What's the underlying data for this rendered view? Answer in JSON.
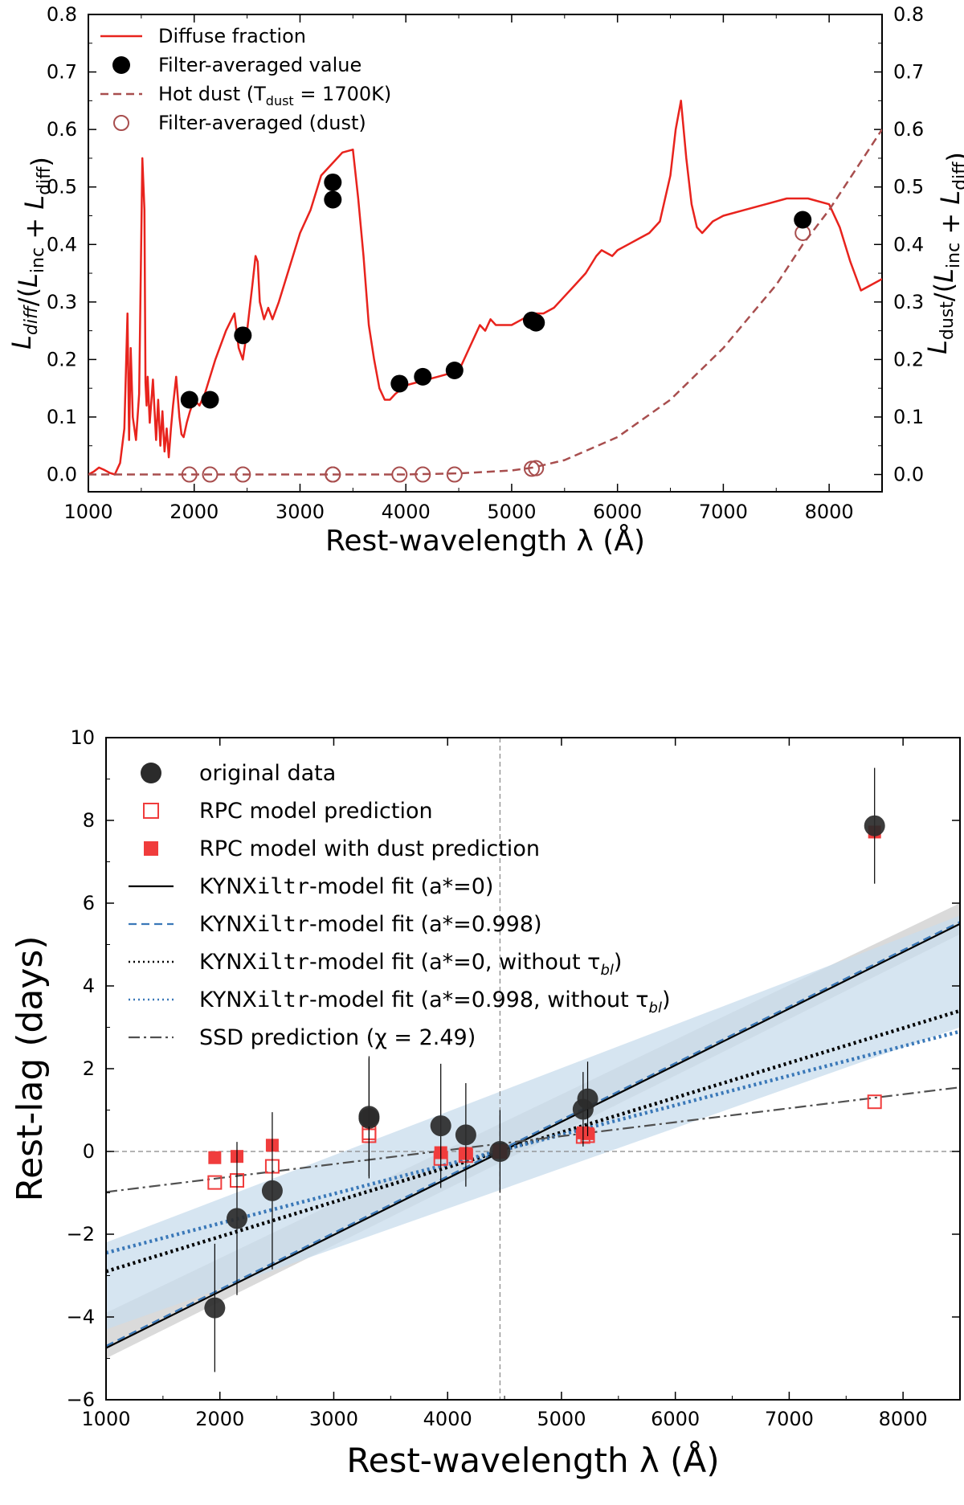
{
  "chart_data": [
    {
      "type": "line",
      "id": "top",
      "xlabel": "Rest-wavelength λ (Å)",
      "ylabel_left": "L_diff/(L_inc + L_diff)",
      "ylabel_right": "L_dust/(L_inc + L_diff)",
      "xlim": [
        1000,
        8500
      ],
      "ylim": [
        0,
        0.8
      ],
      "ylim_axis": [
        -0.03,
        0.8
      ],
      "x_ticks": [
        "1000",
        "2000",
        "3000",
        "4000",
        "5000",
        "6000",
        "7000",
        "8000"
      ],
      "y_ticks": [
        "0.0",
        "0.1",
        "0.2",
        "0.3",
        "0.4",
        "0.5",
        "0.6",
        "0.7",
        "0.8"
      ],
      "legend": [
        {
          "label": "Diffuse fraction",
          "style": "line-red"
        },
        {
          "label": "Filter-averaged value",
          "style": "dot-black"
        },
        {
          "label": "Hot dust (T",
          "sub": "dust",
          "tail": " = 1700K)",
          "style": "dashed-brown"
        },
        {
          "label": "Filter-averaged (dust)",
          "style": "open-circle-brown"
        }
      ],
      "series": [
        {
          "name": "Diffuse fraction",
          "color": "#e8231d",
          "x": [
            1000,
            1050,
            1100,
            1150,
            1200,
            1250,
            1300,
            1340,
            1370,
            1385,
            1400,
            1420,
            1450,
            1480,
            1510,
            1530,
            1540,
            1550,
            1560,
            1580,
            1610,
            1640,
            1660,
            1680,
            1700,
            1720,
            1740,
            1760,
            1780,
            1800,
            1830,
            1860,
            1880,
            1900,
            1930,
            1960,
            2000,
            2050,
            2100,
            2200,
            2300,
            2380,
            2420,
            2460,
            2500,
            2550,
            2580,
            2600,
            2620,
            2660,
            2700,
            2740,
            2800,
            2900,
            3000,
            3100,
            3200,
            3300,
            3400,
            3500,
            3550,
            3600,
            3650,
            3700,
            3750,
            3800,
            3850,
            3900,
            4000,
            4100,
            4200,
            4300,
            4400,
            4500,
            4600,
            4650,
            4700,
            4750,
            4800,
            4850,
            4900,
            5000,
            5100,
            5200,
            5300,
            5400,
            5500,
            5600,
            5700,
            5800,
            5850,
            5900,
            5950,
            6000,
            6100,
            6200,
            6300,
            6400,
            6500,
            6550,
            6600,
            6650,
            6700,
            6750,
            6800,
            6900,
            7000,
            7200,
            7400,
            7600,
            7800,
            8000,
            8100,
            8200,
            8300,
            8400,
            8500
          ],
          "y": [
            0.0,
            0.005,
            0.012,
            0.008,
            0.003,
            0.0,
            0.02,
            0.08,
            0.28,
            0.06,
            0.22,
            0.1,
            0.06,
            0.14,
            0.55,
            0.46,
            0.16,
            0.12,
            0.17,
            0.09,
            0.165,
            0.06,
            0.13,
            0.05,
            0.11,
            0.04,
            0.08,
            0.03,
            0.08,
            0.12,
            0.17,
            0.1,
            0.07,
            0.065,
            0.09,
            0.11,
            0.13,
            0.12,
            0.14,
            0.2,
            0.25,
            0.28,
            0.22,
            0.2,
            0.25,
            0.33,
            0.38,
            0.37,
            0.3,
            0.27,
            0.29,
            0.27,
            0.3,
            0.36,
            0.42,
            0.46,
            0.52,
            0.54,
            0.56,
            0.565,
            0.48,
            0.38,
            0.26,
            0.2,
            0.15,
            0.13,
            0.13,
            0.14,
            0.155,
            0.16,
            0.165,
            0.17,
            0.175,
            0.18,
            0.22,
            0.24,
            0.26,
            0.25,
            0.27,
            0.26,
            0.26,
            0.26,
            0.27,
            0.28,
            0.28,
            0.29,
            0.31,
            0.33,
            0.35,
            0.38,
            0.39,
            0.385,
            0.38,
            0.39,
            0.4,
            0.41,
            0.42,
            0.44,
            0.52,
            0.6,
            0.65,
            0.55,
            0.47,
            0.43,
            0.42,
            0.44,
            0.45,
            0.46,
            0.47,
            0.48,
            0.48,
            0.47,
            0.43,
            0.37,
            0.32,
            0.33,
            0.34
          ]
        },
        {
          "name": "Hot dust (T_dust = 1700K)",
          "color": "#a84e4e",
          "x": [
            1000,
            2000,
            3000,
            4000,
            4500,
            5000,
            5200,
            5500,
            6000,
            6500,
            7000,
            7500,
            7750,
            8000,
            8250,
            8500
          ],
          "y": [
            0.0,
            0.0,
            0.0,
            0.0,
            0.002,
            0.007,
            0.012,
            0.025,
            0.065,
            0.13,
            0.22,
            0.33,
            0.4,
            0.46,
            0.53,
            0.6
          ]
        }
      ],
      "points_filled": {
        "name": "Filter-averaged value",
        "x": [
          1955,
          2150,
          2460,
          3310,
          3310,
          3940,
          4160,
          4460,
          5190,
          5230,
          7750
        ],
        "y": [
          0.13,
          0.13,
          0.242,
          0.508,
          0.478,
          0.158,
          0.17,
          0.181,
          0.268,
          0.264,
          0.443
        ]
      },
      "points_open": {
        "name": "Filter-averaged (dust)",
        "x": [
          1955,
          2150,
          2460,
          3310,
          3310,
          3940,
          4160,
          4460,
          5190,
          5230,
          7750
        ],
        "y": [
          0.0,
          0.0,
          0.0,
          0.0,
          0.0,
          0.0,
          0.0,
          0.0,
          0.01,
          0.011,
          0.42
        ]
      }
    },
    {
      "type": "scatter",
      "id": "bottom",
      "xlabel": "Rest-wavelength λ (Å)",
      "ylabel": "Rest-lag (days)",
      "xlim": [
        1000,
        8500
      ],
      "ylim": [
        -6,
        10
      ],
      "x_ticks": [
        "1000",
        "2000",
        "3000",
        "4000",
        "5000",
        "6000",
        "7000",
        "8000"
      ],
      "y_ticks": [
        "−6",
        "−4",
        "−2",
        "0",
        "2",
        "4",
        "6",
        "8",
        "10"
      ],
      "reference_lines": {
        "x": 4460,
        "y": 0
      },
      "legend": [
        {
          "label": "original data",
          "style": "dot-dark"
        },
        {
          "label": "RPC model prediction",
          "style": "open-square-red"
        },
        {
          "label": "RPC model with dust prediction",
          "style": "filled-square-red"
        },
        {
          "label": "KYNXiltr-model fit (a*=0)",
          "mono": "KYNXiltr",
          "style": "solid-black"
        },
        {
          "label": "KYNXiltr-model fit (a*=0.998)",
          "mono": "KYNXiltr",
          "style": "dashed-blue"
        },
        {
          "label": "KYNXiltr-model fit (a*=0, without τ",
          "mono": "KYNXiltr",
          "sub": "bl",
          "tail": ")",
          "style": "dotted-black"
        },
        {
          "label": "KYNXiltr-model fit (a*=0.998, without τ",
          "mono": "KYNXiltr",
          "sub": "bl",
          "tail": ")",
          "style": "dotted-blue"
        },
        {
          "label": "SSD prediction (χ = 2.49)",
          "style": "dashdot-gray"
        }
      ],
      "original_data": {
        "x": [
          1955,
          2150,
          2460,
          3310,
          3310,
          3940,
          4160,
          4460,
          5190,
          5230,
          7750
        ],
        "y": [
          -3.78,
          -1.62,
          -0.95,
          0.8,
          0.85,
          0.62,
          0.4,
          0.0,
          1.02,
          1.27,
          7.87
        ],
        "yerr": [
          1.55,
          1.85,
          1.9,
          1.45,
          1.45,
          1.5,
          1.25,
          1.0,
          0.9,
          0.9,
          1.4
        ]
      },
      "rpc_prediction": {
        "x": [
          1955,
          2150,
          2460,
          3310,
          3310,
          3940,
          4160,
          4460,
          5190,
          5230,
          7750
        ],
        "y": [
          -0.75,
          -0.7,
          -0.36,
          0.38,
          0.45,
          -0.17,
          -0.1,
          0.0,
          0.36,
          0.38,
          1.2
        ]
      },
      "rpc_dust_prediction": {
        "x": [
          1955,
          2150,
          2460,
          3310,
          3310,
          3940,
          4160,
          4460,
          5190,
          5230,
          7750
        ],
        "y": [
          -0.15,
          -0.12,
          0.15,
          0.85,
          0.75,
          -0.03,
          -0.05,
          0.0,
          0.45,
          0.43,
          7.72
        ]
      },
      "fits": [
        {
          "name": "KYNXiltr-model fit (a*=0)",
          "x": [
            1000,
            8500
          ],
          "y": [
            -4.75,
            5.5
          ],
          "color": "#000000",
          "dash": "solid"
        },
        {
          "name": "KYNXiltr-model fit (a*=0.998)",
          "x": [
            1000,
            8500
          ],
          "y": [
            -4.7,
            5.55
          ],
          "color": "#3a78b8",
          "dash": "long"
        },
        {
          "name": "KYNXiltr-model fit (a*=0, without τ_bl)",
          "x": [
            1000,
            8500
          ],
          "y": [
            -2.9,
            3.4
          ],
          "color": "#000000",
          "dash": "dot"
        },
        {
          "name": "KYNXiltr-model fit (a*=0.998, without τ_bl)",
          "x": [
            1000,
            8500
          ],
          "y": [
            -2.45,
            2.9
          ],
          "color": "#3a78b8",
          "dash": "dot"
        },
        {
          "name": "SSD prediction (χ = 2.49)",
          "x": [
            1000,
            8500
          ],
          "y": [
            -0.98,
            1.55
          ],
          "color": "#505050",
          "dash": "dashdot"
        }
      ],
      "bands": [
        {
          "name": "gray band",
          "x": [
            1000,
            8500
          ],
          "lower": [
            -5.0,
            5.25
          ],
          "upper": [
            -3.9,
            6.0
          ],
          "color": "#d4d4d4"
        },
        {
          "name": "blue band",
          "x": [
            1000,
            8500
          ],
          "lower": [
            -4.3,
            3.0
          ],
          "upper": [
            -2.2,
            5.7
          ],
          "color": "#c8dcec"
        }
      ]
    }
  ],
  "colors": {
    "red": "#e8231d",
    "brown": "#a84e4e",
    "dark_point": "#2b2b2b",
    "rpc_red": "#f03c3c",
    "blue": "#3a78b8"
  }
}
